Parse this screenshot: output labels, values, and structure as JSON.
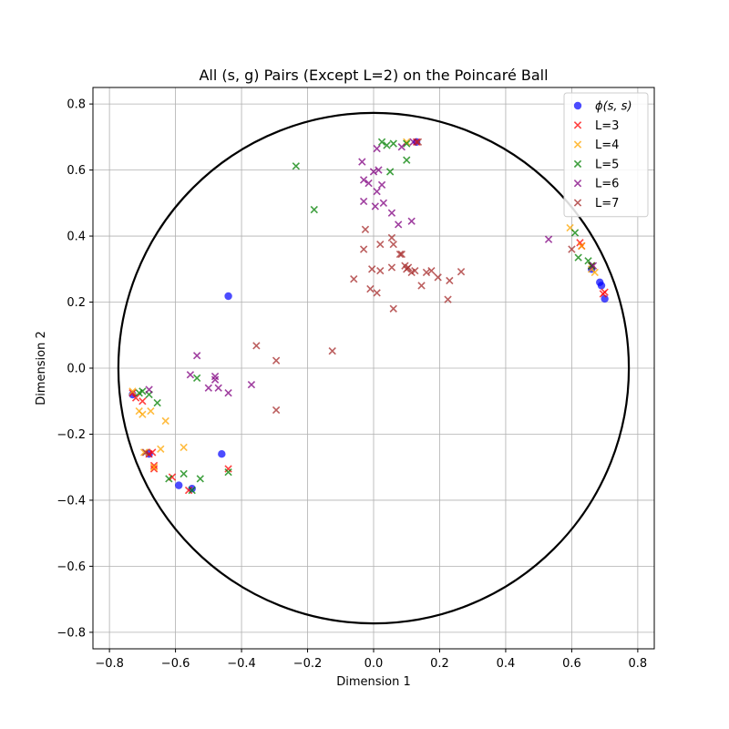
{
  "chart_data": {
    "type": "scatter",
    "title": "All (s, g) Pairs (Except L=2) on the Poincaré Ball",
    "xlabel": "Dimension 1",
    "ylabel": "Dimension 2",
    "xlim": [
      -0.85,
      0.85
    ],
    "ylim": [
      -0.85,
      0.85
    ],
    "xticks": [
      "−0.8",
      "−0.6",
      "−0.4",
      "−0.2",
      "0.0",
      "0.2",
      "0.4",
      "0.6",
      "0.8"
    ],
    "yticks": [
      "−0.8",
      "−0.6",
      "−0.4",
      "−0.2",
      "0.0",
      "0.2",
      "0.4",
      "0.6",
      "0.8"
    ],
    "xtick_values": [
      -0.8,
      -0.6,
      -0.4,
      -0.2,
      0.0,
      0.2,
      0.4,
      0.6,
      0.8
    ],
    "ytick_values": [
      -0.8,
      -0.6,
      -0.4,
      -0.2,
      0.0,
      0.2,
      0.4,
      0.6,
      0.8
    ],
    "grid": true,
    "legend_position": "top-right",
    "boundary_circle_radius": 0.773,
    "series": [
      {
        "name": "ϕ(s, s)",
        "marker": "circle",
        "color": "#0000ff",
        "points": [
          [
            0.13,
            0.685
          ],
          [
            -0.44,
            0.218
          ],
          [
            0.685,
            0.26
          ],
          [
            0.69,
            0.25
          ],
          [
            0.7,
            0.21
          ],
          [
            0.66,
            0.3
          ],
          [
            -0.73,
            -0.08
          ],
          [
            -0.68,
            -0.26
          ],
          [
            -0.46,
            -0.26
          ],
          [
            -0.59,
            -0.355
          ],
          [
            -0.55,
            -0.365
          ]
        ]
      },
      {
        "name": "L=3",
        "marker": "x",
        "color": "#ff0000",
        "points": [
          [
            0.13,
            0.685
          ],
          [
            0.625,
            0.38
          ],
          [
            0.63,
            0.37
          ],
          [
            0.66,
            0.31
          ],
          [
            0.7,
            0.23
          ],
          [
            0.695,
            0.225
          ],
          [
            -0.73,
            -0.075
          ],
          [
            -0.72,
            -0.09
          ],
          [
            -0.7,
            -0.1
          ],
          [
            -0.67,
            -0.255
          ],
          [
            -0.68,
            -0.26
          ],
          [
            -0.665,
            -0.295
          ],
          [
            -0.665,
            -0.305
          ],
          [
            -0.61,
            -0.33
          ],
          [
            -0.56,
            -0.37
          ],
          [
            -0.44,
            -0.305
          ]
        ]
      },
      {
        "name": "L=4",
        "marker": "x",
        "color": "#ffa500",
        "points": [
          [
            0.1,
            0.685
          ],
          [
            0.595,
            0.425
          ],
          [
            0.63,
            0.37
          ],
          [
            0.66,
            0.3
          ],
          [
            0.67,
            0.29
          ],
          [
            -0.73,
            -0.07
          ],
          [
            -0.71,
            -0.13
          ],
          [
            -0.7,
            -0.14
          ],
          [
            -0.675,
            -0.13
          ],
          [
            -0.645,
            -0.245
          ],
          [
            -0.63,
            -0.16
          ],
          [
            -0.575,
            -0.24
          ],
          [
            -0.695,
            -0.255
          ],
          [
            -0.665,
            -0.3
          ]
        ]
      },
      {
        "name": "L=5",
        "marker": "x",
        "color": "#008000",
        "points": [
          [
            0.025,
            0.685
          ],
          [
            0.04,
            0.675
          ],
          [
            0.06,
            0.68
          ],
          [
            0.1,
            0.68
          ],
          [
            0.1,
            0.63
          ],
          [
            0.05,
            0.595
          ],
          [
            -0.235,
            0.612
          ],
          [
            -0.18,
            0.48
          ],
          [
            0.61,
            0.41
          ],
          [
            0.62,
            0.335
          ],
          [
            0.65,
            0.325
          ],
          [
            0.66,
            0.31
          ],
          [
            -0.71,
            -0.075
          ],
          [
            -0.7,
            -0.07
          ],
          [
            -0.68,
            -0.08
          ],
          [
            -0.655,
            -0.105
          ],
          [
            -0.535,
            -0.03
          ],
          [
            -0.575,
            -0.32
          ],
          [
            -0.62,
            -0.335
          ],
          [
            -0.55,
            -0.37
          ],
          [
            -0.525,
            -0.335
          ],
          [
            -0.44,
            -0.315
          ]
        ]
      },
      {
        "name": "L=6",
        "marker": "x",
        "color": "#800080",
        "points": [
          [
            0.01,
            0.665
          ],
          [
            0.12,
            0.685
          ],
          [
            0.085,
            0.67
          ],
          [
            -0.035,
            0.625
          ],
          [
            -0.03,
            0.57
          ],
          [
            -0.015,
            0.56
          ],
          [
            0.0,
            0.595
          ],
          [
            0.015,
            0.6
          ],
          [
            0.025,
            0.555
          ],
          [
            -0.03,
            0.505
          ],
          [
            0.005,
            0.49
          ],
          [
            0.01,
            0.535
          ],
          [
            0.03,
            0.5
          ],
          [
            0.055,
            0.47
          ],
          [
            0.075,
            0.435
          ],
          [
            0.115,
            0.445
          ],
          [
            0.53,
            0.39
          ],
          [
            0.665,
            0.31
          ],
          [
            -0.535,
            0.038
          ],
          [
            -0.555,
            -0.02
          ],
          [
            -0.48,
            -0.025
          ],
          [
            -0.48,
            -0.035
          ],
          [
            -0.5,
            -0.06
          ],
          [
            -0.47,
            -0.06
          ],
          [
            -0.44,
            -0.075
          ],
          [
            -0.37,
            -0.05
          ],
          [
            -0.68,
            -0.065
          ]
        ]
      },
      {
        "name": "L=7",
        "marker": "x",
        "color": "#a52a2a",
        "points": [
          [
            0.135,
            0.685
          ],
          [
            -0.025,
            0.42
          ],
          [
            -0.03,
            0.36
          ],
          [
            0.02,
            0.375
          ],
          [
            0.055,
            0.395
          ],
          [
            0.06,
            0.375
          ],
          [
            0.08,
            0.345
          ],
          [
            0.085,
            0.345
          ],
          [
            0.095,
            0.31
          ],
          [
            0.1,
            0.3
          ],
          [
            0.105,
            0.305
          ],
          [
            0.115,
            0.29
          ],
          [
            0.125,
            0.295
          ],
          [
            0.055,
            0.305
          ],
          [
            0.02,
            0.295
          ],
          [
            -0.005,
            0.3
          ],
          [
            0.145,
            0.25
          ],
          [
            0.16,
            0.29
          ],
          [
            0.175,
            0.295
          ],
          [
            0.195,
            0.275
          ],
          [
            0.23,
            0.265
          ],
          [
            0.265,
            0.292
          ],
          [
            0.225,
            0.208
          ],
          [
            -0.06,
            0.27
          ],
          [
            -0.01,
            0.24
          ],
          [
            0.01,
            0.228
          ],
          [
            0.06,
            0.18
          ],
          [
            -0.355,
            0.068
          ],
          [
            -0.295,
            0.023
          ],
          [
            -0.125,
            0.052
          ],
          [
            -0.295,
            -0.127
          ],
          [
            0.6,
            0.36
          ],
          [
            -0.69,
            -0.255
          ]
        ]
      }
    ]
  }
}
